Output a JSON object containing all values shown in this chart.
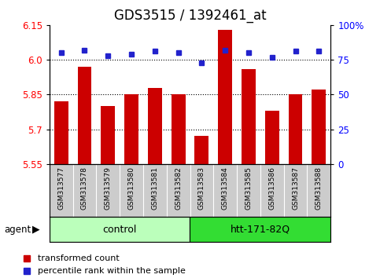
{
  "title": "GDS3515 / 1392461_at",
  "samples": [
    "GSM313577",
    "GSM313578",
    "GSM313579",
    "GSM313580",
    "GSM313581",
    "GSM313582",
    "GSM313583",
    "GSM313584",
    "GSM313585",
    "GSM313586",
    "GSM313587",
    "GSM313588"
  ],
  "transformed_count": [
    5.82,
    5.97,
    5.8,
    5.85,
    5.88,
    5.85,
    5.67,
    6.13,
    5.96,
    5.78,
    5.85,
    5.87
  ],
  "percentile_rank": [
    80,
    82,
    78,
    79,
    81,
    80,
    73,
    82,
    80,
    77,
    81,
    81
  ],
  "ylim_left": [
    5.55,
    6.15
  ],
  "ylim_right": [
    0,
    100
  ],
  "yticks_left": [
    5.55,
    5.7,
    5.85,
    6.0,
    6.15
  ],
  "yticks_right": [
    0,
    25,
    50,
    75,
    100
  ],
  "ytick_labels_right": [
    "0",
    "25",
    "50",
    "75",
    "100%"
  ],
  "hlines": [
    5.7,
    5.85,
    6.0
  ],
  "bar_color": "#cc0000",
  "dot_color": "#2222cc",
  "bar_width": 0.6,
  "group_control_color": "#bbffbb",
  "group_htt_color": "#33dd33",
  "group_control_label": "control",
  "group_htt_label": "htt-171-82Q",
  "sample_bg_color": "#cccccc",
  "agent_label": "agent",
  "legend_red_label": "transformed count",
  "legend_blue_label": "percentile rank within the sample",
  "title_fontsize": 12,
  "tick_fontsize": 8.5,
  "label_fontsize": 8
}
